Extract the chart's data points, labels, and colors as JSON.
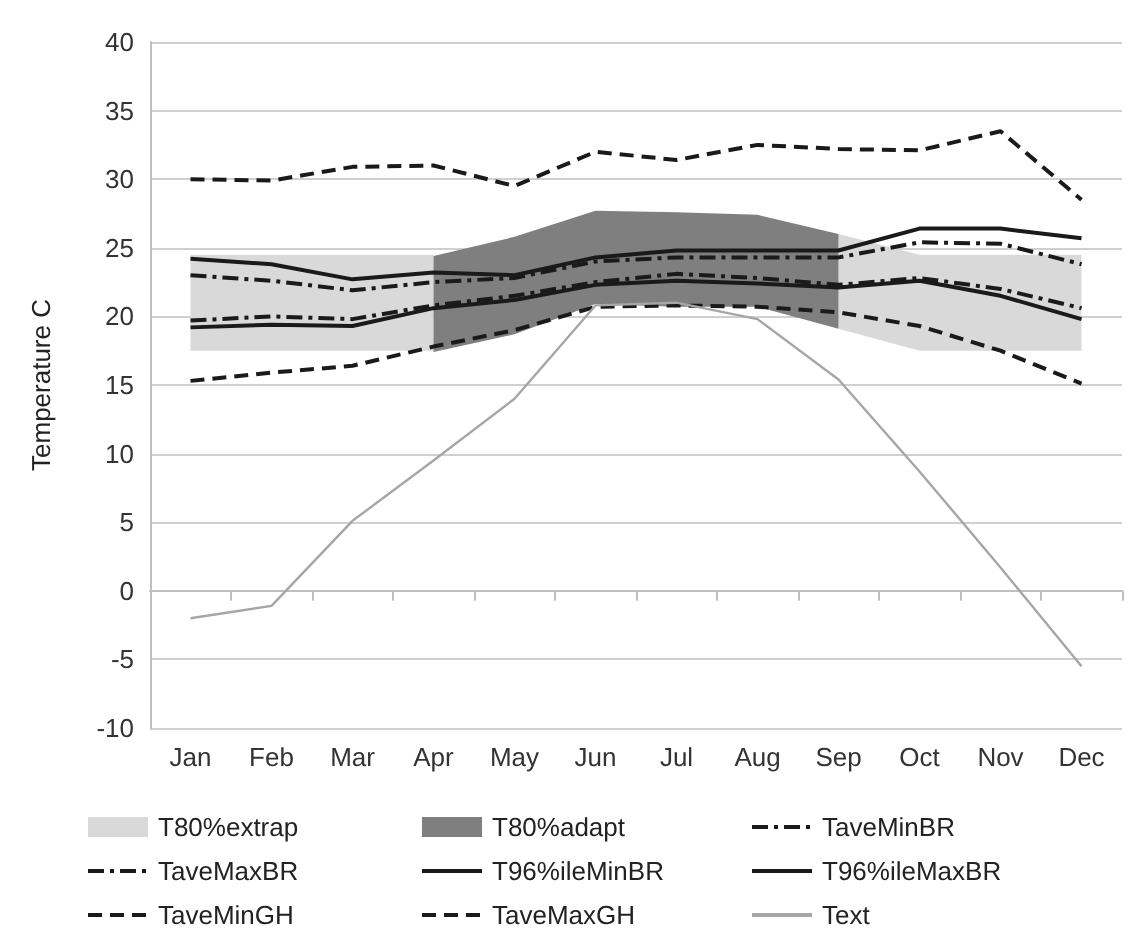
{
  "chart_data": {
    "type": "line",
    "ylabel": "Temperature C",
    "categories": [
      "Jan",
      "Feb",
      "Mar",
      "Apr",
      "May",
      "Jun",
      "Jul",
      "Aug",
      "Sep",
      "Oct",
      "Nov",
      "Dec"
    ],
    "ylim": [
      -10,
      40
    ],
    "yticks": [
      -10,
      -5,
      0,
      5,
      10,
      15,
      20,
      25,
      30,
      35,
      40
    ],
    "grid": "y",
    "legend": "bottom",
    "marker": "none",
    "series": [
      {
        "name": "T80%extrap",
        "color": "#d9d9d9",
        "values": [
          null,
          null,
          null,
          null,
          null,
          null,
          null,
          null,
          null,
          null,
          null,
          null
        ],
        "upper": [
          24.5,
          24.5,
          24.5,
          24.5,
          null,
          null,
          null,
          null,
          26,
          24.5,
          24.5,
          24.5
        ],
        "lower": [
          17.5,
          17.5,
          17.5,
          17.5,
          null,
          null,
          null,
          null,
          19.1,
          17.5,
          17.5,
          17.5
        ]
      },
      {
        "name": "T80%adapt",
        "color": "#7f7f7f",
        "values": [
          null,
          null,
          null,
          null,
          null,
          null,
          null,
          null,
          null,
          null,
          null,
          null
        ],
        "upper": [
          null,
          null,
          null,
          24.4,
          25.8,
          27.7,
          27.6,
          27.4,
          26,
          null,
          null,
          null
        ],
        "lower": [
          null,
          null,
          null,
          17.4,
          18.7,
          20.9,
          20.7,
          20.7,
          19.1,
          null,
          null,
          null
        ]
      },
      {
        "name": "TaveMinBR",
        "color": "#1a1a1a",
        "line_style": "dashdot",
        "values": [
          19.7,
          20,
          19.8,
          20.8,
          21.5,
          22.5,
          23.1,
          22.8,
          22.3,
          22.8,
          22,
          20.6
        ]
      },
      {
        "name": "TaveMaxBR",
        "color": "#1a1a1a",
        "line_style": "dashdot",
        "values": [
          23,
          22.6,
          21.9,
          22.5,
          22.8,
          24,
          24.3,
          24.3,
          24.3,
          25.4,
          25.3,
          23.8
        ]
      },
      {
        "name": "T96%ileMinBR",
        "color": "#1a1a1a",
        "line_style": "solid",
        "values": [
          19.2,
          19.4,
          19.3,
          20.6,
          21.2,
          22.3,
          22.6,
          22.4,
          22.1,
          22.6,
          21.5,
          19.8
        ]
      },
      {
        "name": "T96%ileMaxBR",
        "color": "#1a1a1a",
        "line_style": "solid",
        "values": [
          24.2,
          23.8,
          22.7,
          23.2,
          23,
          24.3,
          24.8,
          24.8,
          24.8,
          26.4,
          26.4,
          25.7
        ]
      },
      {
        "name": "TaveMinGH",
        "color": "#1a1a1a",
        "line_style": "dashed",
        "values": [
          15.3,
          15.9,
          16.4,
          17.8,
          19,
          20.7,
          20.8,
          20.7,
          20.3,
          19.3,
          17.5,
          15.1
        ]
      },
      {
        "name": "TaveMaxGH",
        "color": "#1a1a1a",
        "line_style": "dashed",
        "values": [
          30,
          29.9,
          30.9,
          31,
          29.5,
          32,
          31.4,
          32.5,
          32.2,
          32.1,
          33.5,
          28.5
        ]
      },
      {
        "name": "Text",
        "color": "#a6a6a6",
        "line_style": "solid",
        "values": [
          -2,
          -1.1,
          5.1,
          9.5,
          14,
          20.8,
          21,
          19.8,
          15.4,
          8.7,
          1.7,
          -5.5
        ]
      }
    ]
  }
}
